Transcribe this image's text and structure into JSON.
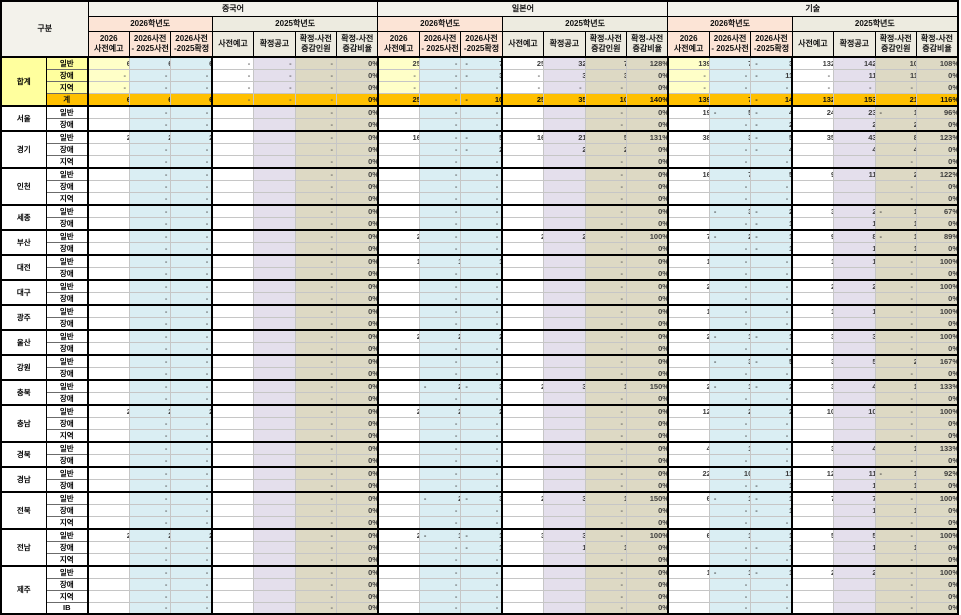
{
  "table": {
    "corner_label": "구분",
    "groups": [
      {
        "name": "중국어",
        "y1": "2026학년도",
        "y2": "2025학년도"
      },
      {
        "name": "일본어",
        "y1": "2026학년도",
        "y2": "2025학년도"
      },
      {
        "name": "기술",
        "y1": "2026학년도",
        "y2": "2025학년도"
      }
    ],
    "columns": [
      {
        "l1": "2026",
        "l2": "사전예고"
      },
      {
        "l1": "2026사전",
        "l2": "- 2025사전"
      },
      {
        "l1": "2026사전",
        "l2": "-2025확정"
      },
      {
        "l1": "사전예고",
        "l2": ""
      },
      {
        "l1": "확정공고",
        "l2": ""
      },
      {
        "l1": "확정-사전",
        "l2": "증감인원"
      },
      {
        "l1": "확정-사전",
        "l2": "증감비율"
      }
    ],
    "colors": {
      "total_label": "#FFFF9E",
      "total_data": "#FFFFC8",
      "grand_row": "#FFC000",
      "blue": "#DAEEF3",
      "purple": "#E4DFEC",
      "tan": "#DDD9C4",
      "peach": "#FCE4D6",
      "header_gray": "#EDEBE0"
    },
    "blocks": [
      {
        "region": "합계",
        "total": true,
        "rows": [
          {
            "label": "일반",
            "cells": "6|6|6|-|-|-|0%|25|-|-7|25|32|7|128%|139|7|-3|132|142|10|108%"
          },
          {
            "label": "장애",
            "cells": "-|-|-|-|-|-|0%|-|-|-3|-|3|3|0%|-|-|-11|-|11|11|0%"
          },
          {
            "label": "지역",
            "cells": "-|-|-|-|-|-|0%|-|-|-|-|-|-|0%|-|-|-|-|-|-|0%"
          },
          {
            "label": "계",
            "grand": true,
            "cells": "6|6|6|-|-|-|0%|25|-|-10|25|35|10|140%|139|7|-14|132|153|21|116%"
          }
        ]
      },
      {
        "region": "서울",
        "rows": [
          {
            "label": "일반",
            "cells": "|-|-|||-|0%||-|-|||-|0%|19|-5|-4|24|23|-1|96%"
          },
          {
            "label": "장애",
            "cells": "|-|-|||-|0%||-|-|||-|0%||-|-2||2|2|0%"
          }
        ]
      },
      {
        "region": "경기",
        "rows": [
          {
            "label": "일반",
            "cells": "2|2|2|||-|0%|16|-|-5|16|21|5|131%|38|3|-5|35|43|8|123%"
          },
          {
            "label": "장애",
            "cells": "|-|-|||-|0%||-|-2||2|2|0%||-|-4||4|4|0%"
          },
          {
            "label": "지역",
            "cells": "|-|-|||-|0%||-|-|||-|0%||-|-|||-|0%"
          }
        ]
      },
      {
        "region": "인천",
        "rows": [
          {
            "label": "일반",
            "cells": "|-|-|||-|0%||-|-|||-|0%|16|7|5|9|11|2|122%"
          },
          {
            "label": "장애",
            "cells": "|-|-|||-|0%||-|-|||-|0%||-|-|||-|0%"
          },
          {
            "label": "지역",
            "cells": "|-|-|||-|0%||-|-|||-|0%||-|-|||-|0%"
          }
        ]
      },
      {
        "region": "세종",
        "rows": [
          {
            "label": "일반",
            "cells": "|-|-|||-|0%||-|-|||-|0%||-3|-2|3|2|-1|67%"
          },
          {
            "label": "장애",
            "cells": "|-|-|||-|0%||-|-|||-|0%||-|-1||1|1|0%"
          }
        ]
      },
      {
        "region": "부산",
        "rows": [
          {
            "label": "일반",
            "cells": "|-|-|||-|0%|2|-|-|2|2|-|100%|7|-2|-1|9|8|-1|89%"
          },
          {
            "label": "장애",
            "cells": "|-|-|||-|0%||-|-|||-|0%||-|-1||1|1|0%"
          }
        ]
      },
      {
        "region": "대전",
        "rows": [
          {
            "label": "일반",
            "cells": "|-|-|||-|0%|1|1|1|||-|0%|1|-|-|1|1|-|100%"
          },
          {
            "label": "장애",
            "cells": "|-|-|||-|0%||-|-|||-|0%||-|-|||-|0%"
          }
        ]
      },
      {
        "region": "대구",
        "rows": [
          {
            "label": "일반",
            "cells": "|-|-|||-|0%||-|-|||-|0%|2|-|-|2|2|-|100%"
          },
          {
            "label": "장애",
            "cells": "|-|-|||-|0%||-|-|||-|0%||-|-|||-|0%"
          }
        ]
      },
      {
        "region": "광주",
        "rows": [
          {
            "label": "일반",
            "cells": "|-|-|||-|0%||-|-|||-|0%|1|-|-|1|1|-|100%"
          },
          {
            "label": "장애",
            "cells": "|-|-|||-|0%||-|-|||-|0%||-|-|||-|0%"
          }
        ]
      },
      {
        "region": "울산",
        "rows": [
          {
            "label": "일반",
            "cells": "|-|-|||-|0%|2|2|2|||-|0%|2|-1|-1|3|3|-|100%"
          },
          {
            "label": "장애",
            "cells": "|-|-|||-|0%||-|-|||-|0%||-|-|||-|0%"
          }
        ]
      },
      {
        "region": "강원",
        "rows": [
          {
            "label": "일반",
            "cells": "|-|-|||-|0%||-|-|||-|0%||-3|-5|3|5|2|167%"
          },
          {
            "label": "장애",
            "cells": "|-|-|||-|0%||-|-|||-|0%||-|-|||-|0%"
          }
        ]
      },
      {
        "region": "충북",
        "rows": [
          {
            "label": "일반",
            "cells": "|-|-|||-|0%||-2|-3|2|3|1|150%|2|-1|-2|3|4|1|133%"
          },
          {
            "label": "장애",
            "cells": "|-|-|||-|0%||-|-|||-|0%||-|-|||-|0%"
          }
        ]
      },
      {
        "region": "충남",
        "rows": [
          {
            "label": "일반",
            "cells": "2|2|2|||-|0%|2|2|2|||-|0%|12|2|2|10|10|-|100%"
          },
          {
            "label": "장애",
            "cells": "|-|-|||-|0%||-|-|||-|0%||-|-|||-|0%"
          },
          {
            "label": "지역",
            "cells": "|-|-|||-|0%||-|-|||-|0%||-|-|||-|0%"
          }
        ]
      },
      {
        "region": "경북",
        "rows": [
          {
            "label": "일반",
            "cells": "|-|-|||-|0%||-|-|||-|0%|4|1|-|3|4|1|133%"
          },
          {
            "label": "장애",
            "cells": "|-|-|||-|0%||-|-|||-|0%||-|-|||-|0%"
          }
        ]
      },
      {
        "region": "경남",
        "rows": [
          {
            "label": "일반",
            "cells": "|-|-|||-|0%||-|-|||-|0%|22|10|11|12|11|-1|92%"
          },
          {
            "label": "장애",
            "cells": "|-|-|||-|0%||-|-|||-|0%||-|-1||1|1|0%"
          }
        ]
      },
      {
        "region": "전북",
        "rows": [
          {
            "label": "일반",
            "cells": "|-|-|||-|0%||-2|-3|2|3|1|150%|6|-1|-1|7|7|-|100%"
          },
          {
            "label": "장애",
            "cells": "|-|-|||-|0%||-|-|||-|0%||-|-1||1|1|0%"
          },
          {
            "label": "지역",
            "cells": "|-|-|||-|0%||-|-|||-|0%||-|-|||-|0%"
          }
        ]
      },
      {
        "region": "전남",
        "rows": [
          {
            "label": "일반",
            "cells": "2|2|2|||-|0%|2|-1|-1|3|3|-|100%|6|1|1|5|5|-|100%"
          },
          {
            "label": "장애",
            "cells": "|-|-|||-|0%||-|-1||1|1|0%||-|-1||1|1|0%"
          },
          {
            "label": "지역",
            "cells": "|-|-|||-|0%||-|-|||-|0%||-|-|||-|0%"
          }
        ]
      },
      {
        "region": "제주",
        "rows": [
          {
            "label": "일반",
            "cells": "|-|-|||-|0%||-|-|||-|0%|1|-1|-1|2|2|-|100%"
          },
          {
            "label": "장애",
            "cells": "|-|-|||-|0%||-|-|||-|0%||-|-|||-|0%"
          },
          {
            "label": "지역",
            "cells": "|-|-|||-|0%||-|-|||-|0%||-|-|||-|0%"
          },
          {
            "label": "IB",
            "cells": "|-|-|||-|0%||-|-|||-|0%||-|-|||-|0%"
          }
        ]
      }
    ]
  }
}
